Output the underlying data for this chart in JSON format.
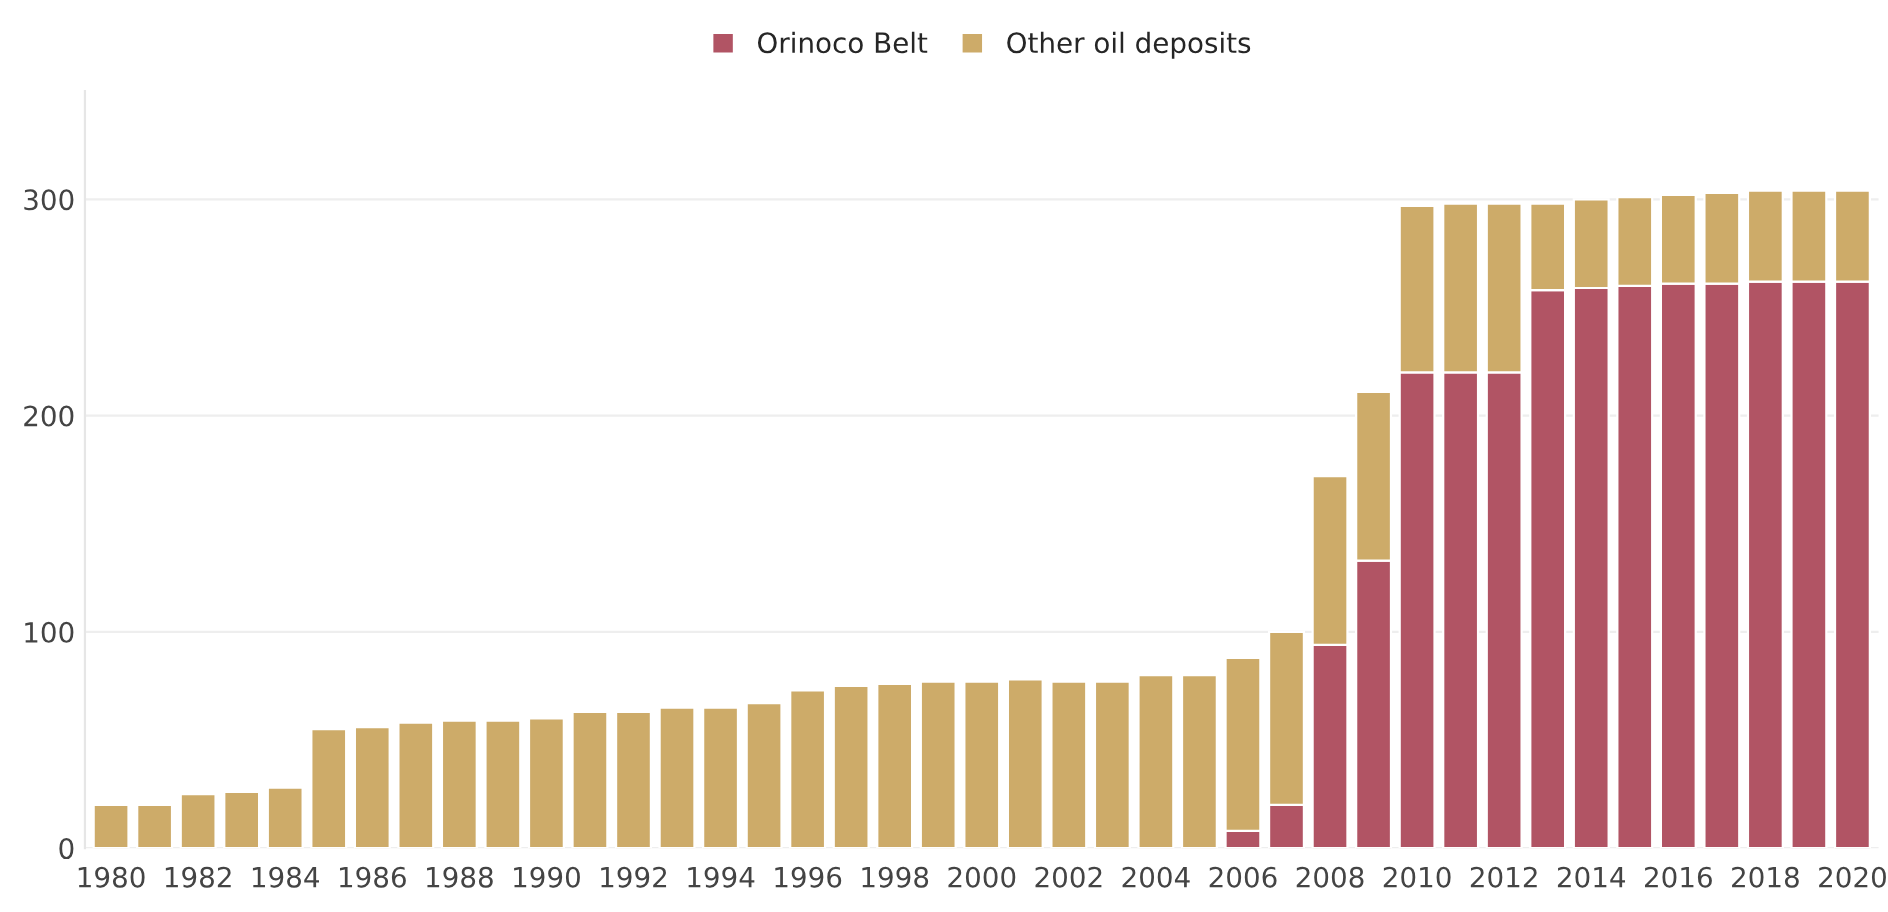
{
  "chart_data": {
    "type": "bar",
    "stacked": true,
    "categories": [
      "1980",
      null,
      "1982",
      null,
      "1984",
      null,
      "1986",
      null,
      "1988",
      null,
      "1990",
      null,
      "1992",
      null,
      "1994",
      null,
      "1996",
      null,
      "1998",
      null,
      "2000",
      null,
      "2002",
      null,
      "2004",
      null,
      "2006",
      null,
      "2008",
      null,
      "2010",
      null,
      "2012",
      null,
      "2014",
      null,
      "2016",
      null,
      "2018",
      null,
      "2020"
    ],
    "series": [
      {
        "name": "Orinoco Belt",
        "color": "#b15464",
        "values": [
          null,
          null,
          null,
          null,
          null,
          null,
          null,
          null,
          null,
          null,
          null,
          null,
          null,
          null,
          null,
          null,
          null,
          null,
          null,
          null,
          null,
          null,
          null,
          null,
          null,
          null,
          8,
          20,
          94,
          133,
          220,
          220,
          220,
          258,
          259,
          260,
          261,
          261,
          262,
          262,
          262
        ]
      },
      {
        "name": "Other oil deposits",
        "color": "#cdab69",
        "values": [
          20,
          20,
          25,
          26,
          28,
          55,
          56,
          58,
          59,
          59,
          60,
          63,
          63,
          65,
          65,
          67,
          73,
          75,
          76,
          77,
          77,
          78,
          77,
          77,
          80,
          80,
          80,
          80,
          78,
          78,
          77,
          78,
          78,
          40,
          41,
          41,
          41,
          42,
          42,
          42,
          42
        ]
      }
    ],
    "ylim": [
      0,
      350
    ],
    "yticks": [
      0,
      100,
      200,
      300
    ],
    "grid": "y",
    "legend": "top"
  }
}
